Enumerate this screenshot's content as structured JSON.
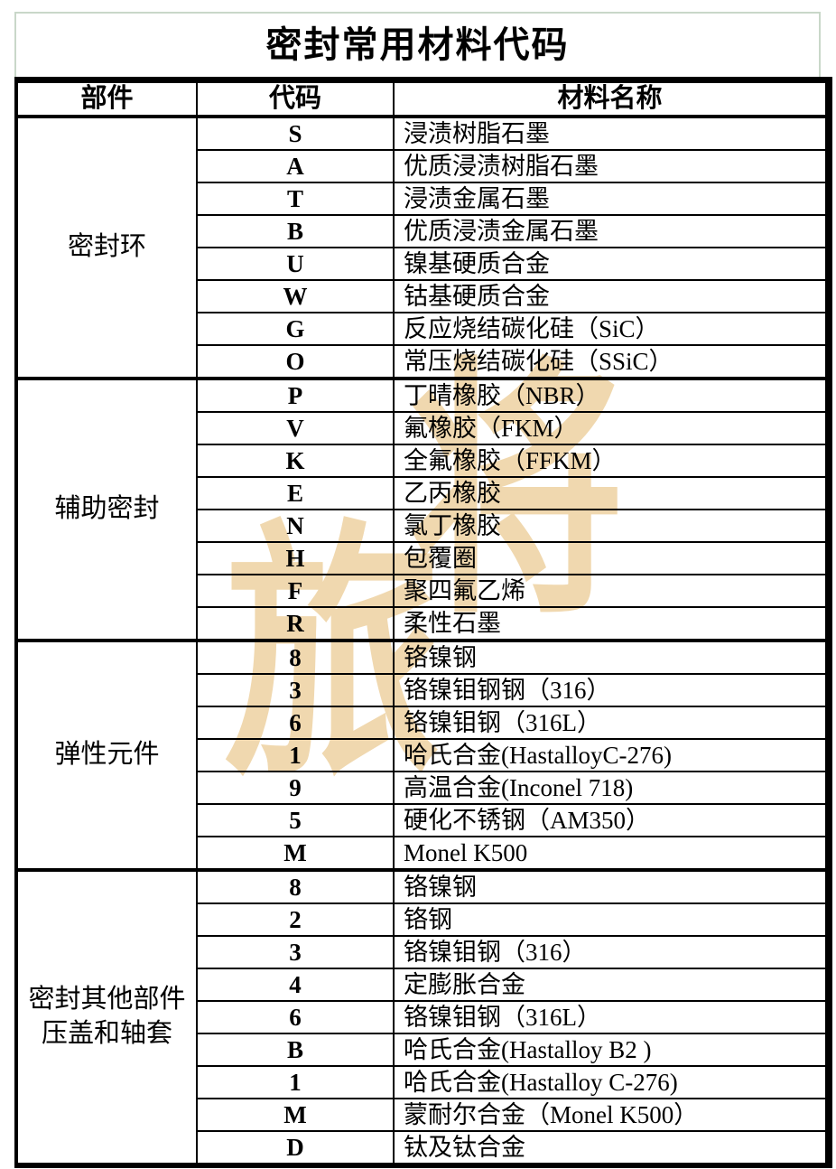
{
  "page": {
    "title": "密封常用材料代码"
  },
  "table": {
    "headers": {
      "part": "部件",
      "code": "代码",
      "material": "材料名称"
    },
    "sections": [
      {
        "label": "密封环",
        "rows": [
          {
            "code": "S",
            "name": "浸渍树脂石墨"
          },
          {
            "code": "A",
            "name": "优质浸渍树脂石墨"
          },
          {
            "code": "T",
            "name": "浸渍金属石墨"
          },
          {
            "code": "B",
            "name": "优质浸渍金属石墨"
          },
          {
            "code": "U",
            "name": "镍基硬质合金"
          },
          {
            "code": "W",
            "name": "钴基硬质合金"
          },
          {
            "code": "G",
            "name": "反应烧结碳化硅（SiC）"
          },
          {
            "code": "O",
            "name": "常压烧结碳化硅（SSiC）"
          }
        ]
      },
      {
        "label": "辅助密封",
        "rows": [
          {
            "code": "P",
            "name": "丁晴橡胶（NBR）"
          },
          {
            "code": "V",
            "name": "氟橡胶（FKM）"
          },
          {
            "code": "K",
            "name": "全氟橡胶（FFKM）"
          },
          {
            "code": "E",
            "name": "乙丙橡胶"
          },
          {
            "code": "N",
            "name": "氯丁橡胶"
          },
          {
            "code": "H",
            "name": "包覆圈"
          },
          {
            "code": "F",
            "name": "聚四氟乙烯"
          },
          {
            "code": "R",
            "name": "柔性石墨"
          }
        ]
      },
      {
        "label": "弹性元件",
        "rows": [
          {
            "code": "8",
            "name": "铬镍钢"
          },
          {
            "code": "3",
            "name": "铬镍钼钢钢（316）"
          },
          {
            "code": "6",
            "name": "铬镍钼钢（316L）"
          },
          {
            "code": "1",
            "name": "哈氏合金(HastalloyC-276)"
          },
          {
            "code": "9",
            "name": "高温合金(Inconel 718)"
          },
          {
            "code": "5",
            "name": "硬化不锈钢（AM350）"
          },
          {
            "code": "M",
            "name": "Monel K500"
          }
        ]
      },
      {
        "label": "密封其他部件\n压盖和轴套",
        "rows": [
          {
            "code": "8",
            "name": "铬镍钢"
          },
          {
            "code": "2",
            "name": "铬钢"
          },
          {
            "code": "3",
            "name": "铬镍钼钢（316）"
          },
          {
            "code": "4",
            "name": "定膨胀合金"
          },
          {
            "code": "6",
            "name": "铬镍钼钢（316L）"
          },
          {
            "code": "B",
            "name": "哈氏合金(Hastalloy B2 )"
          },
          {
            "code": "1",
            "name": "哈氏合金(Hastalloy C-276)"
          },
          {
            "code": "M",
            "name": "蒙耐尔合金（Monel K500）"
          },
          {
            "code": "D",
            "name": "钛及钛合金"
          }
        ]
      }
    ]
  },
  "watermark": {
    "chars": [
      "旅",
      "将"
    ],
    "color": "#eccd98"
  },
  "colors": {
    "title_border_green": "#c9d7c9",
    "table_line": "#000000",
    "background": "#ffffff"
  }
}
